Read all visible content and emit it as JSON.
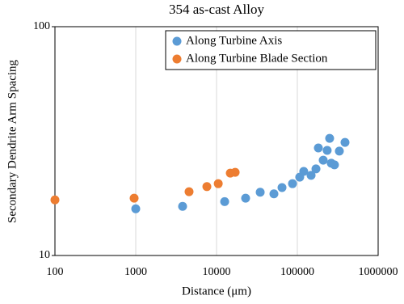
{
  "chart_data": {
    "type": "scatter",
    "title": "354 as-cast Alloy",
    "x_label": "Distance (μm)",
    "y_label": "Secondary Dendrite Arm Spacing",
    "x_log": true,
    "y_log": true,
    "grid": "vertical",
    "legend": "upper right",
    "xlim": [
      100,
      1000000
    ],
    "xticks": [
      100,
      1000,
      10000,
      100000,
      1000000
    ],
    "ylim": [
      10,
      100
    ],
    "yticks": [
      10,
      100
    ],
    "series": [
      {
        "name": "Along Turbine Axis",
        "color": "#5b9bd5",
        "x": [
          1000,
          3800,
          12600,
          22900,
          34700,
          51300,
          64600,
          87100,
          107000,
          120000,
          148000,
          170000,
          182000,
          209000,
          234000,
          251000,
          263000,
          288000,
          331000,
          389000
        ],
        "values": [
          16.0,
          16.4,
          17.2,
          17.8,
          18.9,
          18.6,
          19.8,
          20.6,
          22.0,
          23.3,
          22.4,
          23.9,
          29.5,
          26.1,
          28.8,
          32.5,
          25.3,
          24.9,
          28.6,
          31.2
        ]
      },
      {
        "name": "Along Turbine Blade Section",
        "color": "#ed7d31",
        "x": [
          100,
          955,
          4570,
          7590,
          10500,
          14800,
          17000
        ],
        "values": [
          17.5,
          17.8,
          19.0,
          20.0,
          20.6,
          22.9,
          23.1
        ]
      }
    ]
  }
}
